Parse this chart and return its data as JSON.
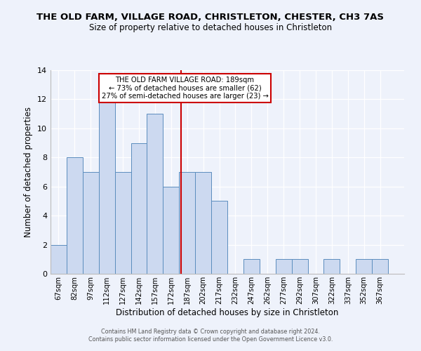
{
  "title_line1": "THE OLD FARM, VILLAGE ROAD, CHRISTLETON, CHESTER, CH3 7AS",
  "title_line2": "Size of property relative to detached houses in Christleton",
  "xlabel": "Distribution of detached houses by size in Christleton",
  "ylabel": "Number of detached properties",
  "bins": [
    "67sqm",
    "82sqm",
    "97sqm",
    "112sqm",
    "127sqm",
    "142sqm",
    "157sqm",
    "172sqm",
    "187sqm",
    "202sqm",
    "217sqm",
    "232sqm",
    "247sqm",
    "262sqm",
    "277sqm",
    "292sqm",
    "307sqm",
    "322sqm",
    "337sqm",
    "352sqm",
    "367sqm"
  ],
  "values": [
    2,
    8,
    7,
    12,
    7,
    9,
    11,
    6,
    7,
    7,
    5,
    0,
    1,
    0,
    1,
    1,
    0,
    1,
    0,
    1,
    1
  ],
  "bin_edges": [
    67,
    82,
    97,
    112,
    127,
    142,
    157,
    172,
    187,
    202,
    217,
    232,
    247,
    262,
    277,
    292,
    307,
    322,
    337,
    352,
    367,
    382
  ],
  "bar_fill": "#ccd9f0",
  "bar_edge": "#5b8dbe",
  "vline_x": 189,
  "vline_color": "#cc0000",
  "annotation_title": "THE OLD FARM VILLAGE ROAD: 189sqm",
  "annotation_line2": "← 73% of detached houses are smaller (62)",
  "annotation_line3": "27% of semi-detached houses are larger (23) →",
  "annotation_box_edge": "#cc0000",
  "annotation_box_fill": "white",
  "ylim": [
    0,
    14
  ],
  "yticks": [
    0,
    2,
    4,
    6,
    8,
    10,
    12,
    14
  ],
  "footer_line1": "Contains HM Land Registry data © Crown copyright and database right 2024.",
  "footer_line2": "Contains public sector information licensed under the Open Government Licence v3.0.",
  "background_color": "#eef2fb"
}
